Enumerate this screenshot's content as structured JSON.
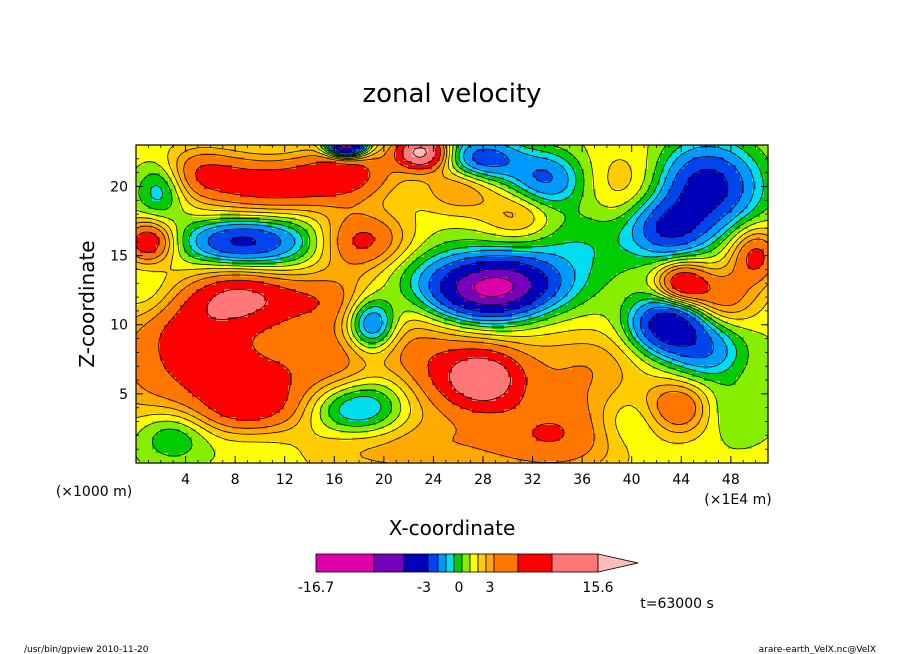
{
  "chart_data": {
    "type": "heatmap",
    "title": "zonal velocity",
    "xlabel": "X-coordinate",
    "ylabel": "Z-coordinate",
    "x_unit_left": "(×1000 m)",
    "x_unit_right": "(×1E4 m)",
    "xlim": [
      0,
      51
    ],
    "ylim": [
      0,
      23
    ],
    "x_ticks": [
      4,
      8,
      12,
      16,
      20,
      24,
      28,
      32,
      36,
      40,
      44,
      48
    ],
    "y_ticks": [
      5,
      10,
      15,
      20
    ],
    "colorbar": {
      "colors": [
        "#dd00aa",
        "#7700bb",
        "#0000bb",
        "#0044ee",
        "#0099ff",
        "#00ddee",
        "#00cc00",
        "#88ee00",
        "#ffff00",
        "#ffcc00",
        "#ffaa00",
        "#ff7700",
        "#ff0000",
        "#ff7777",
        "#ffbbbb"
      ],
      "labels": [
        "-16.7",
        "-3",
        "0",
        "3",
        "15.6"
      ],
      "label_values": [
        -16.7,
        -3,
        0,
        3,
        15.6
      ]
    },
    "time_label": "t=63000 s",
    "blobs": [
      {
        "x": 12,
        "y": 6,
        "v": 3.5,
        "sx": 14,
        "sy": 5
      },
      {
        "x": 4,
        "y": 8,
        "v": 2.5,
        "sx": 6,
        "sy": 4
      },
      {
        "x": 25,
        "y": 8,
        "v": 3.0,
        "sx": 10,
        "sy": 4
      },
      {
        "x": 28,
        "y": 6,
        "v": 6,
        "sx": 3,
        "sy": 2
      },
      {
        "x": 34,
        "y": 2,
        "v": 4,
        "sx": 6,
        "sy": 3
      },
      {
        "x": 22,
        "y": 1,
        "v": 2,
        "sx": 8,
        "sy": 2
      },
      {
        "x": 9,
        "y": 4,
        "v": 3,
        "sx": 4,
        "sy": 2
      },
      {
        "x": 17,
        "y": 4,
        "v": -5,
        "sx": 3.5,
        "sy": 2
      },
      {
        "x": 20,
        "y": 5,
        "v": -3,
        "sx": 3,
        "sy": 3
      },
      {
        "x": 3,
        "y": 2,
        "v": -3,
        "sx": 3,
        "sy": 2
      },
      {
        "x": 10,
        "y": 1.5,
        "v": -1.5,
        "sx": 5,
        "sy": 2
      },
      {
        "x": 8,
        "y": 12,
        "v": 5,
        "sx": 4,
        "sy": 2
      },
      {
        "x": 4,
        "y": 10,
        "v": 1.5,
        "sx": 4,
        "sy": 2
      },
      {
        "x": 15,
        "y": 12,
        "v": 3,
        "sx": 6,
        "sy": 2
      },
      {
        "x": 19,
        "y": 10,
        "v": -7,
        "sx": 2,
        "sy": 2
      },
      {
        "x": 24,
        "y": 13,
        "v": -3,
        "sx": 6,
        "sy": 3
      },
      {
        "x": 28,
        "y": 12.5,
        "v": -9,
        "sx": 4,
        "sy": 2
      },
      {
        "x": 31,
        "y": 13,
        "v": -6,
        "sx": 4,
        "sy": 2
      },
      {
        "x": 29,
        "y": 10,
        "v": -1.5,
        "sx": 5,
        "sy": 2
      },
      {
        "x": 8,
        "y": 16,
        "v": -6,
        "sx": 4,
        "sy": 1.5
      },
      {
        "x": 13,
        "y": 16,
        "v": -3,
        "sx": 5,
        "sy": 2
      },
      {
        "x": 18,
        "y": 16,
        "v": 6,
        "sx": 4,
        "sy": 2.2
      },
      {
        "x": 1,
        "y": 16,
        "v": 6,
        "sx": 2,
        "sy": 1.5
      },
      {
        "x": 11,
        "y": 20,
        "v": 5,
        "sx": 5,
        "sy": 2
      },
      {
        "x": 5,
        "y": 21,
        "v": 4,
        "sx": 4,
        "sy": 2
      },
      {
        "x": 2,
        "y": 20,
        "v": -4,
        "sx": 2,
        "sy": 2
      },
      {
        "x": 17,
        "y": 21,
        "v": 5,
        "sx": 4,
        "sy": 2
      },
      {
        "x": 23,
        "y": 22.5,
        "v": 10,
        "sx": 2,
        "sy": 1.2
      },
      {
        "x": 17,
        "y": 23,
        "v": -14,
        "sx": 1.5,
        "sy": 0.8
      },
      {
        "x": 26,
        "y": 20,
        "v": 3,
        "sx": 3,
        "sy": 2
      },
      {
        "x": 28,
        "y": 22,
        "v": -6,
        "sx": 3,
        "sy": 1.5
      },
      {
        "x": 33,
        "y": 20.5,
        "v": -5,
        "sx": 3,
        "sy": 2
      },
      {
        "x": 31,
        "y": 18,
        "v": 3,
        "sx": 3,
        "sy": 2
      },
      {
        "x": 36,
        "y": 16,
        "v": -2,
        "sx": 6,
        "sy": 3
      },
      {
        "x": 40,
        "y": 20,
        "v": 2,
        "sx": 4,
        "sy": 3
      },
      {
        "x": 46,
        "y": 20,
        "v": -8,
        "sx": 4,
        "sy": 3
      },
      {
        "x": 43,
        "y": 17,
        "v": -6,
        "sx": 3,
        "sy": 2
      },
      {
        "x": 47,
        "y": 12,
        "v": 4,
        "sx": 3,
        "sy": 2
      },
      {
        "x": 44,
        "y": 13,
        "v": 6,
        "sx": 2,
        "sy": 1.5
      },
      {
        "x": 50,
        "y": 15,
        "v": 5,
        "sx": 2,
        "sy": 2
      },
      {
        "x": 43,
        "y": 10,
        "v": -9,
        "sx": 3,
        "sy": 2
      },
      {
        "x": 46,
        "y": 8,
        "v": -4,
        "sx": 3,
        "sy": 2
      },
      {
        "x": 37,
        "y": 7,
        "v": 2,
        "sx": 4,
        "sy": 3
      },
      {
        "x": 44,
        "y": 4,
        "v": 5,
        "sx": 3,
        "sy": 2
      },
      {
        "x": 47,
        "y": 4,
        "v": -2,
        "sx": 3,
        "sy": 2
      },
      {
        "x": 40,
        "y": 3,
        "v": -2,
        "sx": 3,
        "sy": 2
      },
      {
        "x": 36,
        "y": 11,
        "v": -0.5,
        "sx": 3,
        "sy": 4
      },
      {
        "x": 1,
        "y": 12,
        "v": -1,
        "sx": 2,
        "sy": 2
      }
    ]
  },
  "footer": {
    "left": "/usr/bin/gpview   2010-11-20",
    "right": "arare-earth_VelX.nc@VelX"
  }
}
